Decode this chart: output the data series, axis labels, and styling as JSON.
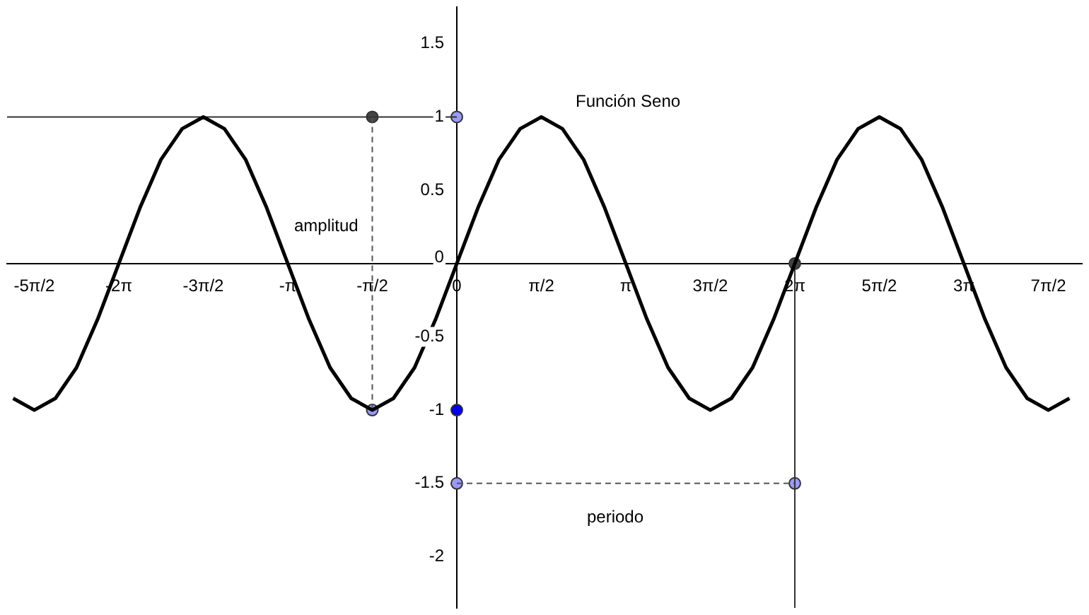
{
  "chart_data": {
    "type": "line",
    "xlim": [
      -8.36,
      11.62
    ],
    "ylim": [
      -2.35,
      1.75
    ],
    "xticks": [
      {
        "value": -7.854,
        "label": "-5π/2"
      },
      {
        "value": -6.283,
        "label": "-2π"
      },
      {
        "value": -4.712,
        "label": "-3π/2"
      },
      {
        "value": -3.142,
        "label": "-π"
      },
      {
        "value": -1.571,
        "label": "-π/2"
      },
      {
        "value": 0,
        "label": "0"
      },
      {
        "value": 1.571,
        "label": "π/2"
      },
      {
        "value": 3.142,
        "label": "π"
      },
      {
        "value": 4.712,
        "label": "3π/2"
      },
      {
        "value": 6.283,
        "label": "2π"
      },
      {
        "value": 7.854,
        "label": "5π/2"
      },
      {
        "value": 9.425,
        "label": "3π"
      },
      {
        "value": 10.996,
        "label": "7π/2"
      }
    ],
    "yticks": [
      -2,
      -1.5,
      -1,
      -0.5,
      0,
      0.5,
      1,
      1.5
    ],
    "grid": false,
    "legend": false,
    "annotations": [
      "Función Seno",
      "amplitud",
      "periodo"
    ],
    "series": [
      {
        "type": "line",
        "color": "#000000",
        "marker": "none",
        "line_style": "solid",
        "x": [
          -8.247,
          -7.854,
          -7.461,
          -7.069,
          -6.676,
          -6.283,
          -5.89,
          -5.498,
          -5.105,
          -4.712,
          -4.32,
          -3.927,
          -3.534,
          -3.142,
          -2.749,
          -2.356,
          -1.963,
          -1.571,
          -1.178,
          -0.785,
          -0.393,
          0,
          0.393,
          0.785,
          1.178,
          1.571,
          1.963,
          2.356,
          2.749,
          3.142,
          3.534,
          3.927,
          4.32,
          4.712,
          5.105,
          5.498,
          5.89,
          6.283,
          6.676,
          7.069,
          7.461,
          7.854,
          8.247,
          8.639,
          9.032,
          9.425,
          9.817,
          10.21,
          10.603,
          10.996,
          11.388
        ],
        "values": [
          -0.92,
          -1,
          -0.92,
          -0.71,
          -0.38,
          0,
          0.38,
          0.71,
          0.92,
          1,
          0.92,
          0.71,
          0.38,
          0,
          -0.38,
          -0.71,
          -0.92,
          -1,
          -0.92,
          -0.71,
          -0.38,
          0,
          0.38,
          0.71,
          0.92,
          1,
          0.92,
          0.71,
          0.38,
          0,
          -0.38,
          -0.71,
          -0.92,
          -1,
          -0.92,
          -0.71,
          -0.38,
          0,
          0.38,
          0.71,
          0.92,
          1,
          0.92,
          0.71,
          0.38,
          0,
          -0.38,
          -0.71,
          -0.92,
          -1,
          -0.92
        ]
      },
      {
        "type": "line",
        "color": "#333333",
        "marker": "none",
        "line_style": "solid",
        "x": [
          -8.36,
          0
        ],
        "values": [
          1,
          1
        ]
      },
      {
        "type": "line",
        "color": "#555555",
        "marker": "none",
        "line_style": "dashed",
        "x": [
          -1.571,
          -1.571
        ],
        "values": [
          1,
          -1
        ]
      },
      {
        "type": "line",
        "color": "#333333",
        "marker": "none",
        "line_style": "solid",
        "x": [
          6.283,
          6.283
        ],
        "values": [
          0,
          -2.35
        ]
      },
      {
        "type": "line",
        "color": "#555555",
        "marker": "none",
        "line_style": "dashed",
        "x": [
          0,
          6.283
        ],
        "values": [
          -1.5,
          -1.5
        ]
      },
      {
        "type": "scatter",
        "marker": "circle",
        "x": [
          -1.571,
          0,
          -1.571,
          0,
          6.283,
          0,
          6.283
        ],
        "values": [
          1,
          1,
          -1,
          -1,
          0,
          -1.5,
          -1.5
        ],
        "colors": [
          "#444444",
          "#9999ff",
          "#9999ff",
          "#0000ee",
          "#444444",
          "#9999ff",
          "#9999ff"
        ]
      }
    ]
  }
}
